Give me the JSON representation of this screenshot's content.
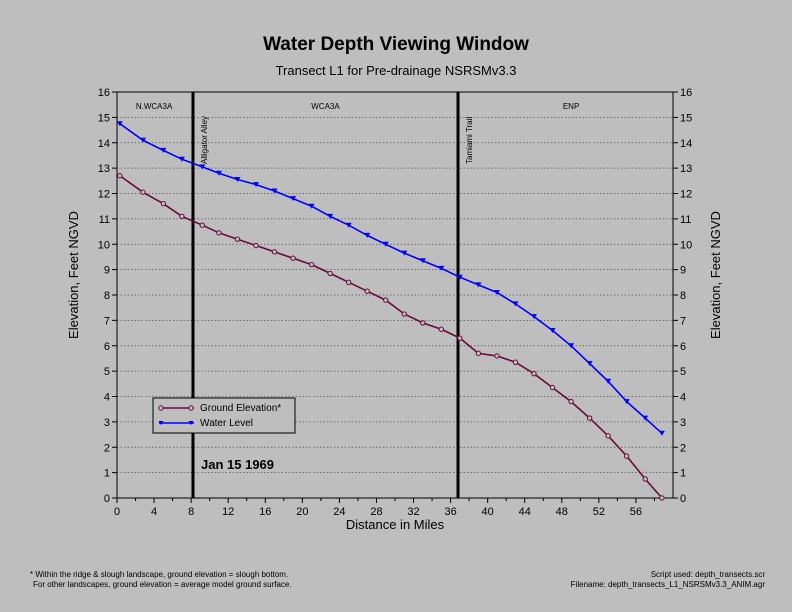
{
  "chart_data": {
    "type": "line",
    "title": "Water Depth Viewing Window",
    "subtitle": "Transect L1 for Pre-drainage NSRSMv3.3",
    "xlabel": "Distance in Miles",
    "ylabel": "Elevation, Feet NGVD",
    "ylabel_right": "Elevation, Feet NGVD",
    "xlim": [
      0,
      60
    ],
    "ylim": [
      0,
      16
    ],
    "xticks": [
      "0",
      "4",
      "8",
      "12",
      "16",
      "20",
      "24",
      "28",
      "32",
      "36",
      "40",
      "44",
      "48",
      "52",
      "56"
    ],
    "yticks": [
      "0",
      "1",
      "2",
      "3",
      "4",
      "5",
      "6",
      "7",
      "8",
      "9",
      "10",
      "11",
      "12",
      "13",
      "14",
      "15",
      "16"
    ],
    "grid": true,
    "legend_position": "lower-left",
    "date_label": "Jan 15 1969",
    "vertical_lines": [
      {
        "x": 8.2,
        "label": "Alligator Alley"
      },
      {
        "x": 36.8,
        "label": "Tamiami Trail"
      }
    ],
    "regions": [
      {
        "label": "N.WCA3A",
        "x": 4.0
      },
      {
        "label": "WCA3A",
        "x": 22.5
      },
      {
        "label": "ENP",
        "x": 49.0
      }
    ],
    "series": [
      {
        "name": "Ground Elevation*",
        "color": "#6a0a3a",
        "marker": "circle",
        "x": [
          0.3,
          2.8,
          5.0,
          7.0,
          9.2,
          11.0,
          13.0,
          15.0,
          17.0,
          19.0,
          21.0,
          23.0,
          25.0,
          27.0,
          29.0,
          31.0,
          33.0,
          35.0,
          37.0,
          39.0,
          41.0,
          43.0,
          45.0,
          47.0,
          49.0,
          51.0,
          53.0,
          55.0,
          57.0,
          58.8
        ],
        "y": [
          12.7,
          12.05,
          11.6,
          11.1,
          10.75,
          10.45,
          10.2,
          9.95,
          9.7,
          9.45,
          9.2,
          8.85,
          8.5,
          8.15,
          7.8,
          7.25,
          6.9,
          6.65,
          6.3,
          5.7,
          5.6,
          5.35,
          4.9,
          4.35,
          3.8,
          3.15,
          2.45,
          1.65,
          0.75,
          0.0
        ]
      },
      {
        "name": "Water Level",
        "color": "#0000ff",
        "marker": "triangle-down",
        "x": [
          0.3,
          2.8,
          5.0,
          7.0,
          9.2,
          11.0,
          13.0,
          15.0,
          17.0,
          19.0,
          21.0,
          23.0,
          25.0,
          27.0,
          29.0,
          31.0,
          33.0,
          35.0,
          37.0,
          39.0,
          41.0,
          43.0,
          45.0,
          47.0,
          49.0,
          51.0,
          53.0,
          55.0,
          57.0,
          58.8
        ],
        "y": [
          14.75,
          14.1,
          13.7,
          13.35,
          13.05,
          12.8,
          12.55,
          12.35,
          12.1,
          11.8,
          11.5,
          11.1,
          10.75,
          10.35,
          10.0,
          9.65,
          9.35,
          9.05,
          8.7,
          8.4,
          8.1,
          7.65,
          7.15,
          6.6,
          6.0,
          5.3,
          4.6,
          3.8,
          3.15,
          2.55
        ]
      }
    ]
  },
  "footnote": {
    "line1": "* Within the ridge & slough landscape, ground elevation = slough bottom.",
    "line2": "For other landscapes, ground elevation = average model ground surface.",
    "script": "Script used: depth_transects.scr",
    "filename": "Filename: depth_transects_L1_NSRSMv3.3_ANIM.agr"
  }
}
